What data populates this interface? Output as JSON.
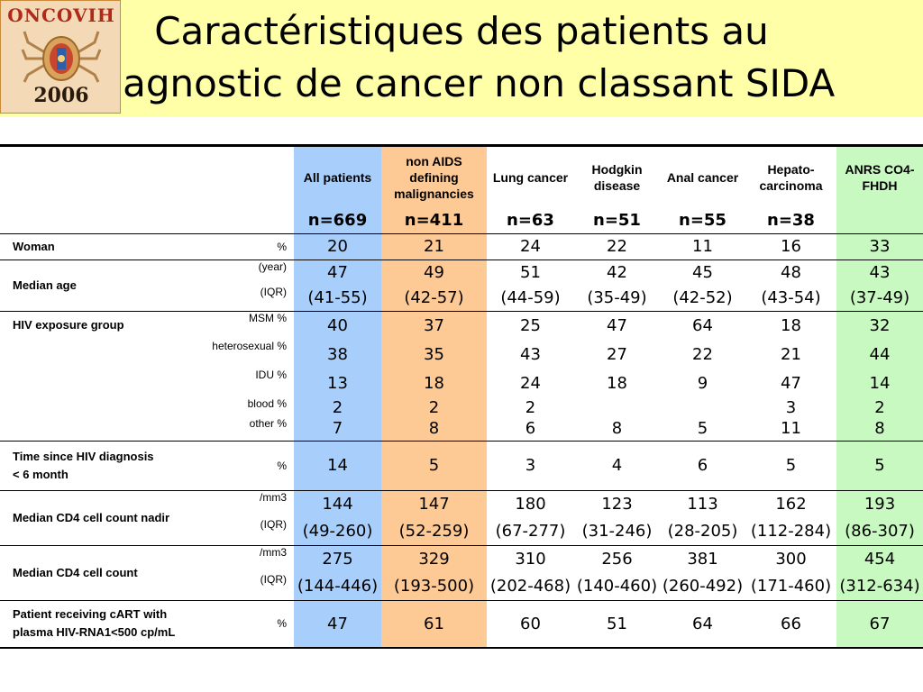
{
  "title": {
    "line1": "Caractéristiques des patients au",
    "line2": "diagnostic de cancer non classant SIDA"
  },
  "logo": {
    "top_text": "ONCOVIH",
    "bottom_text": "2006"
  },
  "colors": {
    "header_bg": "#ffffa8",
    "all_patients": "#a8cffb",
    "non_aids": "#fdc994",
    "anrs": "#c8f9c0"
  },
  "table": {
    "columns": [
      {
        "label": "All patients",
        "n": "n=669"
      },
      {
        "label": "non AIDS defining malignancies",
        "n": "n=411"
      },
      {
        "label": "Lung cancer",
        "n": "n=63"
      },
      {
        "label": "Hodgkin disease",
        "n": "n=51"
      },
      {
        "label": "Anal cancer",
        "n": "n=55"
      },
      {
        "label": "Hepato-carcinoma",
        "n": "n=38"
      },
      {
        "label": "ANRS CO4-FHDH",
        "n": ""
      }
    ],
    "rows": [
      {
        "label": "Woman",
        "unit": "%",
        "values": [
          "20",
          "21",
          "24",
          "22",
          "11",
          "16",
          "33"
        ]
      },
      {
        "label": "Median age",
        "unit": "(year)",
        "values": [
          "47",
          "49",
          "51",
          "42",
          "45",
          "48",
          "43"
        ]
      },
      {
        "label": "",
        "unit": "(IQR)",
        "values": [
          "(41-55)",
          "(42-57)",
          "(44-59)",
          "(35-49)",
          "(42-52)",
          "(43-54)",
          "(37-49)"
        ]
      },
      {
        "label": "HIV exposure group",
        "unit": "MSM %",
        "values": [
          "40",
          "37",
          "25",
          "47",
          "64",
          "18",
          "32"
        ]
      },
      {
        "label": "",
        "unit": "heterosexual %",
        "values": [
          "38",
          "35",
          "43",
          "27",
          "22",
          "21",
          "44"
        ]
      },
      {
        "label": "",
        "unit": "IDU %",
        "values": [
          "13",
          "18",
          "24",
          "18",
          "9",
          "47",
          "14"
        ]
      },
      {
        "label": "",
        "unit": "blood %",
        "values": [
          "2",
          "2",
          "2",
          "",
          "",
          "3",
          "2"
        ]
      },
      {
        "label": "",
        "unit": "other %",
        "values": [
          "7",
          "8",
          "6",
          "8",
          "5",
          "11",
          "8"
        ]
      },
      {
        "label": "Time since HIV diagnosis",
        "label2": "< 6 month",
        "unit": "%",
        "values": [
          "14",
          "5",
          "3",
          "4",
          "6",
          "5",
          "5"
        ]
      },
      {
        "label": "Median CD4 cell count nadir",
        "unit": "/mm3",
        "values": [
          "144",
          "147",
          "180",
          "123",
          "113",
          "162",
          "193"
        ]
      },
      {
        "label": "",
        "unit": "(IQR)",
        "values": [
          "(49-260)",
          "(52-259)",
          "(67-277)",
          "(31-246)",
          "(28-205)",
          "(112-284)",
          "(86-307)"
        ]
      },
      {
        "label": "Median CD4 cell count",
        "unit": "/mm3",
        "values": [
          "275",
          "329",
          "310",
          "256",
          "381",
          "300",
          "454"
        ]
      },
      {
        "label": "",
        "unit": "(IQR)",
        "values": [
          "(144-446)",
          "(193-500)",
          "(202-468)",
          "(140-460)",
          "(260-492)",
          "(171-460)",
          "(312-634)"
        ]
      },
      {
        "label": "Patient receiving cART with",
        "label2": "plasma HIV-RNA1<500 cp/mL",
        "unit": "%",
        "values": [
          "47",
          "61",
          "60",
          "51",
          "64",
          "66",
          "67"
        ]
      }
    ]
  }
}
